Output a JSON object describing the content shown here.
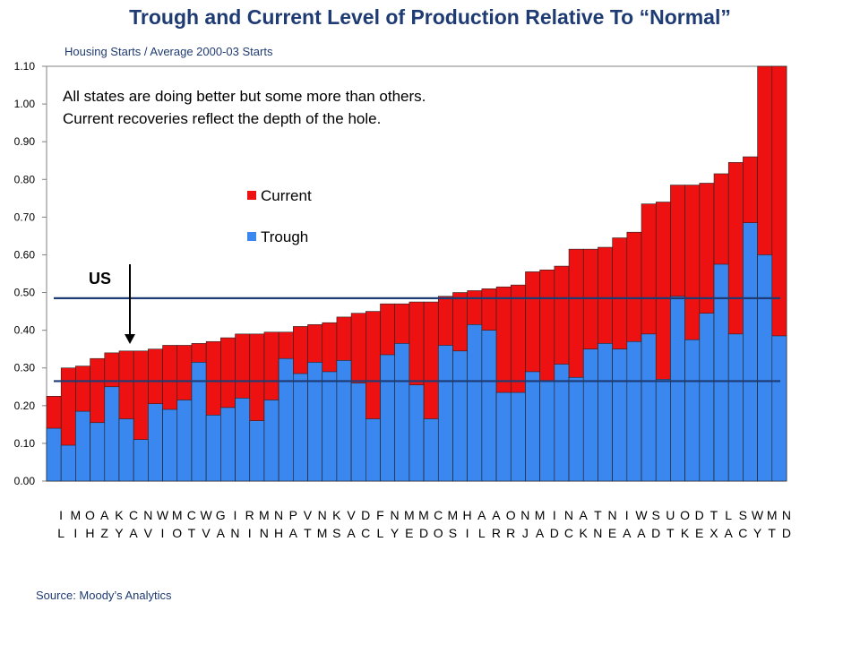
{
  "chart_data": {
    "type": "bar",
    "title": "Trough and Current Level of Production Relative To “Normal”",
    "subtitle": "Housing Starts / Average 2000-03 Starts",
    "source": "Source: Moody’s Analytics",
    "annotation": "All states are doing better but some more than others.\nCurrent recoveries reflect the depth of the hole.",
    "us_label": "US",
    "us_current": 0.485,
    "us_trough": 0.265,
    "ylim": [
      0,
      1.1
    ],
    "yticks": [
      "0.00",
      "0.10",
      "0.20",
      "0.30",
      "0.40",
      "0.50",
      "0.60",
      "0.70",
      "0.80",
      "0.90",
      "1.00",
      "1.10"
    ],
    "grid": false,
    "legend_placement": "center",
    "categories": [
      "IL",
      "MI",
      "OH",
      "AZ",
      "KY",
      "CA",
      "NV",
      "WI",
      "MO",
      "CT",
      "WV",
      "GA",
      "IN",
      "RI",
      "MN",
      "NH",
      "PA",
      "VT",
      "NM",
      "KS",
      "VA",
      "DC",
      "FL",
      "NY",
      "ME",
      "MD",
      "CO",
      "MS",
      "HI",
      "AL",
      "AR",
      "OR",
      "NJ",
      "MA",
      "ID",
      "NC",
      "AK",
      "TN",
      "NE",
      "IA",
      "WA",
      "SD",
      "UT",
      "OK",
      "DE",
      "TX",
      "LA",
      "SC",
      "WY",
      "MT",
      "ND"
    ],
    "series": [
      {
        "name": "Current",
        "color": "#ee1111",
        "values": [
          0.225,
          0.3,
          0.305,
          0.325,
          0.34,
          0.345,
          0.345,
          0.35,
          0.36,
          0.36,
          0.365,
          0.37,
          0.38,
          0.39,
          0.39,
          0.395,
          0.395,
          0.41,
          0.415,
          0.42,
          0.435,
          0.445,
          0.45,
          0.47,
          0.47,
          0.475,
          0.475,
          0.49,
          0.5,
          0.505,
          0.51,
          0.515,
          0.52,
          0.555,
          0.56,
          0.57,
          0.615,
          0.615,
          0.62,
          0.645,
          0.66,
          0.735,
          0.74,
          0.785,
          0.785,
          0.79,
          0.815,
          0.845,
          0.86,
          1.1,
          1.1
        ]
      },
      {
        "name": "Trough",
        "color": "#3a87f0",
        "values": [
          0.14,
          0.095,
          0.185,
          0.155,
          0.25,
          0.165,
          0.11,
          0.205,
          0.19,
          0.215,
          0.315,
          0.175,
          0.195,
          0.22,
          0.16,
          0.215,
          0.325,
          0.285,
          0.315,
          0.29,
          0.32,
          0.26,
          0.165,
          0.335,
          0.365,
          0.255,
          0.165,
          0.36,
          0.345,
          0.415,
          0.4,
          0.235,
          0.235,
          0.29,
          0.265,
          0.31,
          0.275,
          0.35,
          0.365,
          0.35,
          0.37,
          0.39,
          0.27,
          0.49,
          0.375,
          0.445,
          0.575,
          0.39,
          0.685,
          0.6,
          0.385
        ]
      }
    ]
  }
}
